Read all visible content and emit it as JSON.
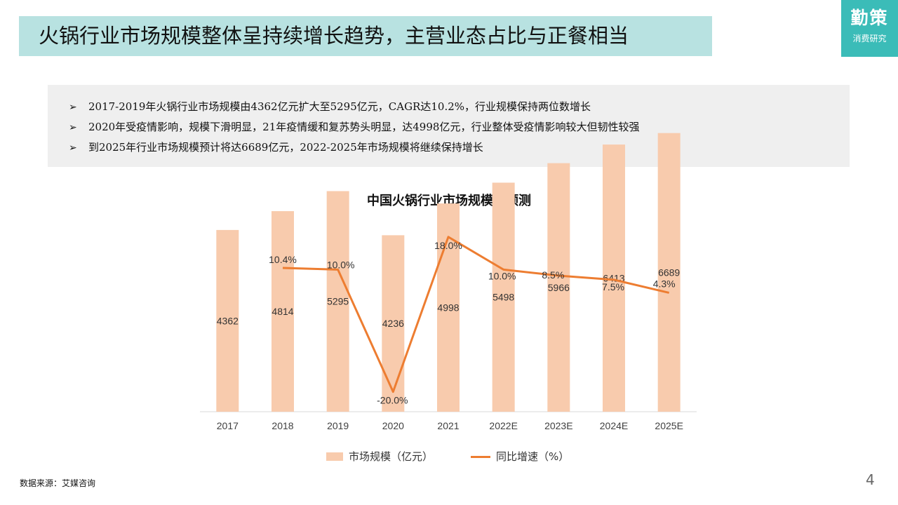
{
  "header": {
    "title": "火锅行业市场规模整体呈持续增长趋势，主营业态占比与正餐相当"
  },
  "logo": {
    "main": "勤策",
    "sub": "消费研究"
  },
  "summary": {
    "bullets": [
      "2017-2019年火锅行业市场规模由4362亿元扩大至5295亿元，CAGR达10.2%，行业规模保持两位数增长",
      "2020年受疫情影响，规模下滑明显，21年疫情缓和复苏势头明显，达4998亿元，行业整体受疫情影响较大但韧性较强",
      "到2025年行业市场规模预计将达6689亿元，2022-2025年市场规模将继续保持增长"
    ],
    "arrow_glyph": "➢"
  },
  "chart_data": {
    "type": "bar",
    "title": "中国火锅行业市场规模及预测",
    "categories": [
      "2017",
      "2018",
      "2019",
      "2020",
      "2021",
      "2022E",
      "2023E",
      "2024E",
      "2025E"
    ],
    "series": [
      {
        "name": "市场规模（亿元）",
        "type": "bar",
        "values": [
          4362,
          4814,
          5295,
          4236,
          4998,
          5498,
          5966,
          6413,
          6689
        ],
        "labels": [
          "4362",
          "4814",
          "5295",
          "4236",
          "4998",
          "5498",
          "5966",
          "6413",
          "6689"
        ],
        "color": "#f8cbad"
      },
      {
        "name": "同比增速（%）",
        "type": "line",
        "values": [
          null,
          10.4,
          10.0,
          -20.0,
          18.0,
          10.0,
          8.5,
          7.5,
          4.3
        ],
        "labels": [
          null,
          "10.4%",
          "10.0%",
          "-20.0%",
          "18.0%",
          "10.0%",
          "8.5%",
          "7.5%",
          "4.3%"
        ],
        "color": "#ed7d31"
      }
    ],
    "ylim_bar": [
      0,
      7000
    ],
    "ylim_line": [
      -25,
      20
    ],
    "grid": false,
    "legend_position": "bottom"
  },
  "footer": {
    "source": "数据来源：艾媒咨询",
    "page_number": "4"
  }
}
